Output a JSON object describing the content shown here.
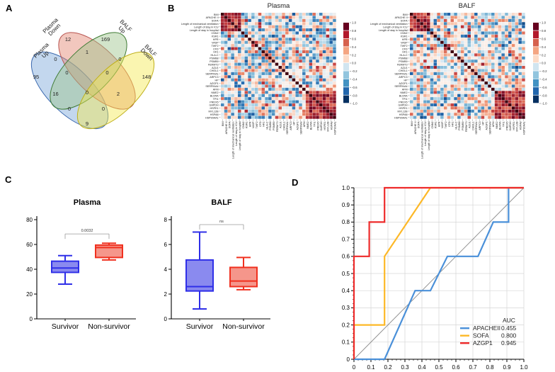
{
  "panels": {
    "a": "A",
    "b": "B",
    "c": "C",
    "d": "D"
  },
  "chart_data": [
    {
      "id": "venn",
      "type": "venn",
      "set_labels": [
        [
          "Plasma",
          "Up"
        ],
        [
          "Plasma",
          "Down"
        ],
        [
          "BALF",
          "Up"
        ],
        [
          "BALF",
          "Down"
        ]
      ],
      "fills": [
        "#7aa7d9",
        "#e2836f",
        "#9cc48a",
        "#f3e94f"
      ],
      "strokes": [
        "#3a68ae",
        "#b85450",
        "#3e7a33",
        "#bfaf1a"
      ],
      "counts": {
        "plasma_up": "95",
        "plasma_down": "12",
        "balf_up": "169",
        "balf_down": "148",
        "plasma_up_plasma_down": "0",
        "plasma_down_balf_up": "1",
        "balf_up_balf_down": "0",
        "plasma_up_plasma_down_balf_up": "0",
        "plasma_down_balf_up_balf_down": "0",
        "plasma_up_balf_up": "16",
        "all_four": "0",
        "plasma_down_balf_down": "2",
        "plasma_up_balf_up_balf_down": "0",
        "plasma_up_plasma_down_balf_down": "0",
        "plasma_up_balf_down": "9"
      }
    },
    {
      "id": "correlation_heatmaps",
      "type": "heatmap",
      "titles": [
        "Plasma",
        "BALF"
      ],
      "labels": [
        "BMI",
        "APACHE II",
        "SOFA",
        "Length of mechanical ventilation",
        "Length of stay in ICU",
        "Length of stay in hospital",
        "CNN2",
        "KSR1",
        "HPR",
        "VASP",
        "TWF2",
        "CFD",
        "HK1",
        "HLA-C",
        "PSMB8",
        "PSMB9",
        "FERMT3",
        "AZU1",
        "CHI3L1",
        "SERPINA1",
        "ARPC3",
        "HP",
        "AZGP1",
        "SERPINA4",
        "AFM",
        "NME2",
        "BLVRA",
        "TPI1",
        "PRDX5",
        "GAPDH",
        "HSPE1",
        "MYL12B",
        "HSPA8",
        "HSP90AA1"
      ],
      "colorbar_ticks": [
        "1.0",
        "0.8",
        "0.6",
        "0.4",
        "0.2",
        "0.0",
        "-0.2",
        "-0.4",
        "-0.6",
        "-0.8",
        "-1.0"
      ],
      "colorbar_colors": [
        "#67001f",
        "#b2182b",
        "#d6604d",
        "#f4a582",
        "#fddbc7",
        "#d1e5f0",
        "#92c5de",
        "#4393c3",
        "#2166ac",
        "#053061"
      ],
      "value_range": [
        -1,
        1
      ],
      "diagonal_value": 1,
      "cell_values": "individual cells not legible; symmetric correlation matrix with dark-red diagonal, strong positive block among clinical severity variables (rows 1-6) and among heat-shock/glycolytic proteins (rows 26-34)",
      "seeds": [
        11,
        29
      ],
      "clusters": [
        [
          0,
          5
        ],
        [
          25,
          33
        ]
      ]
    },
    {
      "id": "plasma_box",
      "type": "box",
      "title": "Plasma",
      "ylim": [
        0,
        80
      ],
      "yticks": [
        "0",
        "20",
        "40",
        "60",
        "80"
      ],
      "significance": "0.0032",
      "sig_y": 68.5,
      "categories": [
        "Survivor",
        "Non-survivor"
      ],
      "series": [
        {
          "name": "Survivor",
          "color": "#2f2fe8",
          "fill": "#8a8aef",
          "whislo": 28,
          "q1": 37.5,
          "med": 41,
          "q3": 46.5,
          "whishi": 51
        },
        {
          "name": "Non-survivor",
          "color": "#f0301f",
          "fill": "#f5968b",
          "whislo": 47.5,
          "q1": 49.5,
          "med": 57.5,
          "q3": 59.5,
          "whishi": 61
        }
      ]
    },
    {
      "id": "balf_box",
      "type": "box",
      "title": "BALF",
      "ylim": [
        0,
        8
      ],
      "yticks": [
        "0",
        "2",
        "4",
        "6",
        "8"
      ],
      "significance": "ns",
      "sig_y": 7.6,
      "categories": [
        "Survivor",
        "Non-survivor"
      ],
      "series": [
        {
          "name": "Survivor",
          "color": "#2f2fe8",
          "fill": "#8a8aef",
          "whislo": 0.8,
          "q1": 2.25,
          "med": 2.6,
          "q3": 4.75,
          "whishi": 7.0
        },
        {
          "name": "Non-survivor",
          "color": "#f0301f",
          "fill": "#f5968b",
          "whislo": 2.35,
          "q1": 2.6,
          "med": 3.05,
          "q3": 4.15,
          "whishi": 4.95
        }
      ]
    },
    {
      "id": "roc",
      "type": "line",
      "subtype": "roc",
      "xlim": [
        0,
        1
      ],
      "ylim": [
        0,
        1
      ],
      "xticks": [
        "0",
        "0.1",
        "0.2",
        "0.3",
        "0.4",
        "0.5",
        "0.6",
        "0.7",
        "0.8",
        "0.9",
        "1.0"
      ],
      "yticks": [
        "0",
        "0.1",
        "0.2",
        "0.3",
        "0.4",
        "0.5",
        "0.6",
        "0.7",
        "0.8",
        "0.9",
        "1.0"
      ],
      "grid": true,
      "grid_color": "#d6d6d6",
      "diagonal_color": "#8c8c8c",
      "legend_header": "AUC",
      "series": [
        {
          "name": "APACHEII",
          "auc": "0.455",
          "color": "#4a90d9",
          "points": [
            [
              0,
              0
            ],
            [
              0.18,
              0
            ],
            [
              0.36,
              0.4
            ],
            [
              0.45,
              0.4
            ],
            [
              0.55,
              0.6
            ],
            [
              0.73,
              0.6
            ],
            [
              0.82,
              0.8
            ],
            [
              0.91,
              0.8
            ],
            [
              0.91,
              1
            ],
            [
              1,
              1
            ]
          ]
        },
        {
          "name": "SOFA",
          "auc": "0.800",
          "color": "#fdb827",
          "points": [
            [
              0,
              0
            ],
            [
              0,
              0.2
            ],
            [
              0.18,
              0.2
            ],
            [
              0.18,
              0.6
            ],
            [
              0.45,
              1
            ],
            [
              1,
              1
            ]
          ]
        },
        {
          "name": "AZGP1",
          "auc": "0.945",
          "color": "#ee2b2b",
          "points": [
            [
              0,
              0
            ],
            [
              0,
              0.6
            ],
            [
              0.09,
              0.6
            ],
            [
              0.09,
              0.8
            ],
            [
              0.18,
              0.8
            ],
            [
              0.18,
              1
            ],
            [
              1,
              1
            ]
          ]
        }
      ]
    }
  ]
}
